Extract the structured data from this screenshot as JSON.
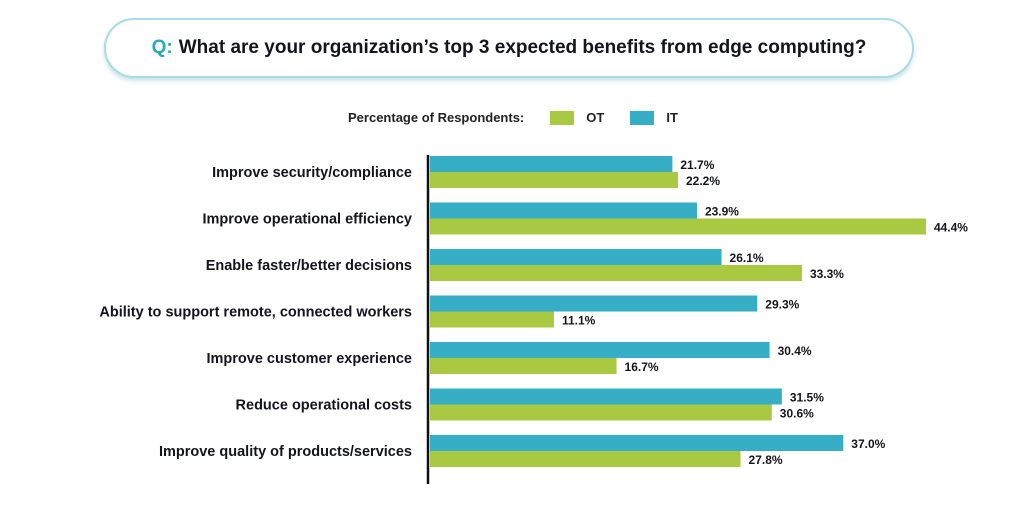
{
  "title": {
    "prefix": "Q:",
    "text": "What are your organization’s top 3 expected benefits from edge computing?"
  },
  "legend": {
    "label": "Percentage of Respondents:",
    "items": [
      {
        "name": "OT",
        "color": "#a9c943"
      },
      {
        "name": "IT",
        "color": "#35aec6"
      }
    ]
  },
  "chart_data": {
    "type": "bar",
    "orientation": "horizontal",
    "title": "What are your organization’s top 3 expected benefits from edge computing?",
    "xlabel": "Percentage of Respondents",
    "ylabel": "",
    "xlim": [
      0,
      50
    ],
    "grid": false,
    "legend_position": "top",
    "categories": [
      "Improve security/compliance",
      "Improve operational efficiency",
      "Enable faster/better decisions",
      "Ability to support remote, connected workers",
      "Improve customer experience",
      "Reduce operational costs",
      "Improve quality of products/services"
    ],
    "series": [
      {
        "name": "IT",
        "color": "#35aec6",
        "values": [
          21.7,
          23.9,
          26.1,
          29.3,
          30.4,
          31.5,
          37.0
        ],
        "labels": [
          "21.7%",
          "23.9%",
          "26.1%",
          "29.3%",
          "30.4%",
          "31.5%",
          "37.0%"
        ]
      },
      {
        "name": "OT",
        "color": "#a9c943",
        "values": [
          22.2,
          44.4,
          33.3,
          11.1,
          16.7,
          30.6,
          27.8
        ],
        "labels": [
          "22.2%",
          "44.4%",
          "33.3%",
          "11.1%",
          "16.7%",
          "30.6%",
          "27.8%"
        ]
      }
    ]
  }
}
